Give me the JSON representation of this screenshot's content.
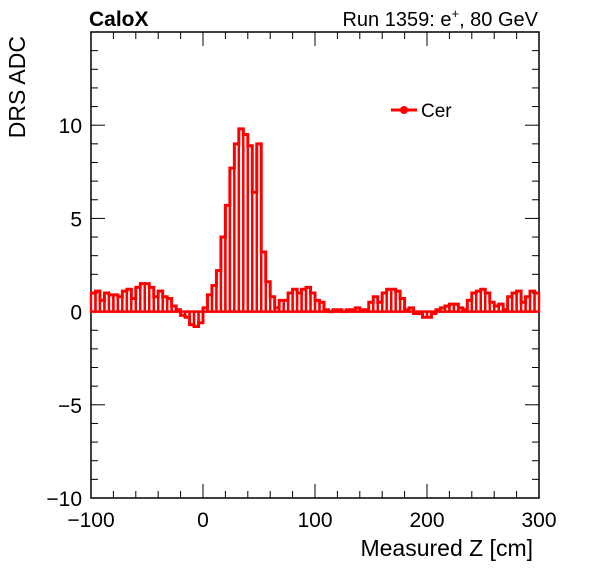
{
  "header": {
    "brand": "CaloX",
    "run_prefix": "Run 1359: e",
    "run_sup": "+",
    "run_suffix": ", 80 GeV"
  },
  "chart_data": {
    "type": "line",
    "style": "step-histogram",
    "xlabel": "Measured Z [cm]",
    "ylabel": "DRS ADC",
    "xlim": [
      -100,
      300
    ],
    "ylim": [
      -10,
      15
    ],
    "xticks": [
      -100,
      0,
      100,
      200,
      300
    ],
    "xtick_labels": [
      "−100",
      "0",
      "100",
      "200",
      "300"
    ],
    "yticks": [
      -10,
      -5,
      0,
      5,
      10
    ],
    "ytick_labels": [
      "−10",
      "−5",
      "0",
      "5",
      "10"
    ],
    "legend_position": "top-right",
    "color": "#ff0000",
    "bin_width": 4,
    "series": [
      {
        "name": "Cer",
        "x": [
          -98,
          -94,
          -90,
          -86,
          -82,
          -78,
          -74,
          -70,
          -66,
          -62,
          -58,
          -54,
          -50,
          -46,
          -42,
          -38,
          -34,
          -30,
          -26,
          -22,
          -18,
          -14,
          -10,
          -6,
          -2,
          2,
          6,
          10,
          14,
          18,
          22,
          26,
          30,
          34,
          38,
          42,
          46,
          50,
          54,
          58,
          62,
          66,
          70,
          74,
          78,
          82,
          86,
          90,
          94,
          98,
          102,
          106,
          110,
          114,
          118,
          122,
          126,
          130,
          134,
          138,
          142,
          146,
          150,
          154,
          158,
          162,
          166,
          170,
          174,
          178,
          182,
          186,
          190,
          194,
          198,
          202,
          206,
          210,
          214,
          218,
          222,
          226,
          230,
          234,
          238,
          242,
          246,
          250,
          254,
          258,
          262,
          266,
          270,
          274,
          278,
          282,
          286,
          290,
          294,
          298
        ],
        "values": [
          1.0,
          1.1,
          0.6,
          1.0,
          0.9,
          0.9,
          0.8,
          1.1,
          1.2,
          0.7,
          1.3,
          1.5,
          1.5,
          1.3,
          0.8,
          1.1,
          0.8,
          0.7,
          0.3,
          0.1,
          -0.2,
          -0.3,
          -0.7,
          -0.8,
          -0.6,
          0.2,
          0.9,
          1.4,
          2.2,
          4.0,
          5.7,
          7.7,
          9.0,
          9.8,
          9.5,
          8.9,
          6.4,
          9.0,
          3.2,
          1.6,
          0.8,
          0.2,
          0.6,
          0.6,
          1.0,
          1.2,
          1.0,
          1.2,
          1.3,
          1.0,
          0.6,
          0.5,
          0.1,
          0.0,
          0.1,
          0.1,
          0.0,
          0.1,
          0.1,
          0.2,
          0.1,
          0.1,
          0.5,
          0.8,
          0.5,
          1.0,
          1.2,
          1.2,
          1.1,
          0.7,
          0.1,
          0.2,
          -0.1,
          -0.1,
          -0.3,
          -0.3,
          -0.1,
          0.1,
          0.2,
          0.3,
          0.4,
          0.4,
          0.2,
          0.1,
          0.6,
          1.0,
          1.1,
          1.2,
          1.0,
          0.5,
          0.3,
          0.4,
          0.1,
          0.8,
          1.0,
          1.1,
          0.5,
          0.8,
          1.1,
          1.0
        ]
      }
    ]
  }
}
